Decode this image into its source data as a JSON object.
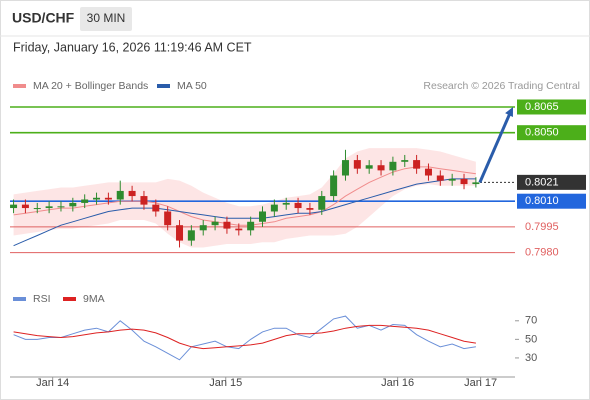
{
  "header": {
    "symbol": "USD/CHF",
    "interval": "30 MIN",
    "timestamp": "Friday, January 16, 2026 11:19:46 AM CET"
  },
  "chart_data": [
    {
      "type": "candlestick",
      "source": "Research © 2026 Trading Central",
      "xlim": [
        -0.3,
        42.3
      ],
      "ylim": [
        0.7964,
        0.8072
      ],
      "up_color": "#2e8b2e",
      "down_color": "#cc2222",
      "candles": {
        "open": [
          0.8006,
          0.8008,
          0.8006,
          0.8006,
          0.8007,
          0.8007,
          0.8009,
          0.8011,
          0.8012,
          0.8011,
          0.8016,
          0.8013,
          0.8008,
          0.8004,
          0.7996,
          0.7987,
          0.7993,
          0.7996,
          0.7998,
          0.7994,
          0.7993,
          0.7998,
          0.8004,
          0.8008,
          0.8009,
          0.8006,
          0.8005,
          0.8013,
          0.8025,
          0.8034,
          0.8029,
          0.8031,
          0.8028,
          0.8033,
          0.8034,
          0.8029,
          0.8025,
          0.8022,
          0.8023,
          0.802
        ],
        "high": [
          0.8011,
          0.8011,
          0.8009,
          0.801,
          0.801,
          0.8012,
          0.8014,
          0.8015,
          0.8015,
          0.8022,
          0.8019,
          0.8016,
          0.8011,
          0.8007,
          0.7999,
          0.7996,
          0.7999,
          0.8001,
          0.8001,
          0.7997,
          0.8001,
          0.8007,
          0.8011,
          0.8012,
          0.8012,
          0.8009,
          0.8016,
          0.8028,
          0.804,
          0.8037,
          0.8034,
          0.8034,
          0.8036,
          0.8037,
          0.8037,
          0.8032,
          0.8028,
          0.8026,
          0.8026,
          0.8024
        ],
        "low": [
          0.8003,
          0.8003,
          0.8003,
          0.8003,
          0.8004,
          0.8004,
          0.8006,
          0.8008,
          0.8008,
          0.8008,
          0.801,
          0.8005,
          0.8001,
          0.7993,
          0.7983,
          0.7984,
          0.799,
          0.7993,
          0.7991,
          0.799,
          0.799,
          0.7995,
          0.8001,
          0.8005,
          0.8003,
          0.8002,
          0.8002,
          0.801,
          0.8022,
          0.8026,
          0.8026,
          0.8025,
          0.8025,
          0.803,
          0.8026,
          0.8022,
          0.8019,
          0.8019,
          0.8017,
          0.8018
        ],
        "close": [
          0.8008,
          0.8006,
          0.8006,
          0.8007,
          0.8007,
          0.8009,
          0.8011,
          0.8012,
          0.8011,
          0.8016,
          0.8013,
          0.8008,
          0.8004,
          0.7996,
          0.7987,
          0.7993,
          0.7996,
          0.7998,
          0.7994,
          0.7993,
          0.7998,
          0.8004,
          0.8008,
          0.8009,
          0.8006,
          0.8005,
          0.8013,
          0.8025,
          0.8034,
          0.8029,
          0.8031,
          0.8028,
          0.8033,
          0.8034,
          0.8029,
          0.8025,
          0.8022,
          0.8023,
          0.802,
          0.8021
        ]
      },
      "bands": {
        "color": "#fde0e0",
        "upper": [
          0.8014,
          0.8015,
          0.8016,
          0.8017,
          0.8018,
          0.8018,
          0.8019,
          0.802,
          0.8021,
          0.8021,
          0.8021,
          0.8021,
          0.8021,
          0.8023,
          0.8022,
          0.8019,
          0.8015,
          0.8012,
          0.8009,
          0.8007,
          0.8007,
          0.8008,
          0.801,
          0.8012,
          0.8013,
          0.8014,
          0.8018,
          0.8026,
          0.8035,
          0.8039,
          0.8041,
          0.8041,
          0.8041,
          0.8041,
          0.8041,
          0.804,
          0.8039,
          0.8037,
          0.8035,
          0.8033
        ],
        "lower": [
          0.799,
          0.7991,
          0.7992,
          0.7993,
          0.7994,
          0.7994,
          0.7995,
          0.7996,
          0.7997,
          0.7999,
          0.7999,
          0.7999,
          0.7997,
          0.7991,
          0.7986,
          0.7983,
          0.7983,
          0.7984,
          0.7985,
          0.7985,
          0.7985,
          0.7986,
          0.7986,
          0.7988,
          0.7989,
          0.799,
          0.799,
          0.799,
          0.7991,
          0.7995,
          0.8001,
          0.8007,
          0.8013,
          0.8017,
          0.8019,
          0.802,
          0.8019,
          0.8019,
          0.8019,
          0.8019
        ]
      },
      "series": [
        {
          "name": "MA 20 + Bollinger Bands",
          "color": "#f08c8c",
          "values": [
            0.8002,
            0.8003,
            0.8004,
            0.8005,
            0.8006,
            0.8006,
            0.8007,
            0.8008,
            0.8009,
            0.801,
            0.801,
            0.801,
            0.8009,
            0.8007,
            0.8004,
            0.8001,
            0.7999,
            0.7998,
            0.7997,
            0.7996,
            0.7996,
            0.7997,
            0.7998,
            0.8,
            0.8001,
            0.8002,
            0.8004,
            0.8008,
            0.8013,
            0.8017,
            0.8021,
            0.8024,
            0.8027,
            0.8029,
            0.803,
            0.803,
            0.8029,
            0.8028,
            0.8027,
            0.8026
          ]
        },
        {
          "name": "MA 50",
          "color": "#2a5caa",
          "values": [
            0.7984,
            0.7987,
            0.799,
            0.7993,
            0.7996,
            0.7998,
            0.8,
            0.8002,
            0.8004,
            0.8005,
            0.8006,
            0.8006,
            0.8006,
            0.8005,
            0.8004,
            0.8003,
            0.8002,
            0.8001,
            0.8,
            0.8,
            0.8,
            0.8,
            0.8001,
            0.8002,
            0.8003,
            0.8003,
            0.8004,
            0.8006,
            0.8008,
            0.801,
            0.8012,
            0.8014,
            0.8016,
            0.8018,
            0.802,
            0.8021,
            0.8022,
            0.8023,
            0.8023,
            0.8023
          ]
        }
      ],
      "levels": [
        {
          "value": 0.8065,
          "color": "#4caf1a",
          "style": "box"
        },
        {
          "value": 0.805,
          "label": "0.8050",
          "color": "#4caf1a",
          "style": "box"
        },
        {
          "value": 0.8021,
          "color": "#333333",
          "style": "dotted"
        },
        {
          "value": 0.801,
          "label": "0.8010",
          "color": "#2266dd",
          "style": "box"
        },
        {
          "value": 0.7995,
          "color": "#e06060",
          "style": "text"
        },
        {
          "value": 0.798,
          "label": "0.7980",
          "color": "#e06060",
          "style": "text"
        }
      ],
      "forecast_target": 0.8065,
      "forecast_color": "#2a5caa"
    },
    {
      "type": "line",
      "xlim": [
        -0.3,
        42.3
      ],
      "ylim": [
        17,
        87
      ],
      "yticks": [
        70,
        50,
        30
      ],
      "xticks": [
        {
          "value": 3.3,
          "label": "Jan 14"
        },
        {
          "value": 17.9,
          "label": "Jan 15"
        },
        {
          "value": 32.4,
          "label": "Jan 16"
        },
        {
          "value": 39.4,
          "label": "Jan 17"
        }
      ],
      "series": [
        {
          "name": "RSI",
          "color": "#6a8fd8",
          "values": [
            55,
            50,
            50,
            52,
            52,
            56,
            60,
            62,
            58,
            70,
            60,
            48,
            42,
            35,
            28,
            42,
            45,
            48,
            42,
            40,
            50,
            58,
            62,
            62,
            55,
            52,
            62,
            72,
            75,
            62,
            65,
            60,
            66,
            65,
            55,
            48,
            42,
            45,
            40,
            42
          ]
        },
        {
          "name": "9MA",
          "color": "#dd2222",
          "values": [
            58,
            56,
            54,
            53,
            52,
            53,
            55,
            57,
            58,
            60,
            61,
            60,
            57,
            52,
            46,
            42,
            40,
            41,
            42,
            43,
            44,
            46,
            50,
            54,
            56,
            56,
            57,
            59,
            62,
            64,
            65,
            65,
            64,
            63,
            62,
            60,
            56,
            52,
            48,
            46
          ]
        }
      ]
    }
  ]
}
